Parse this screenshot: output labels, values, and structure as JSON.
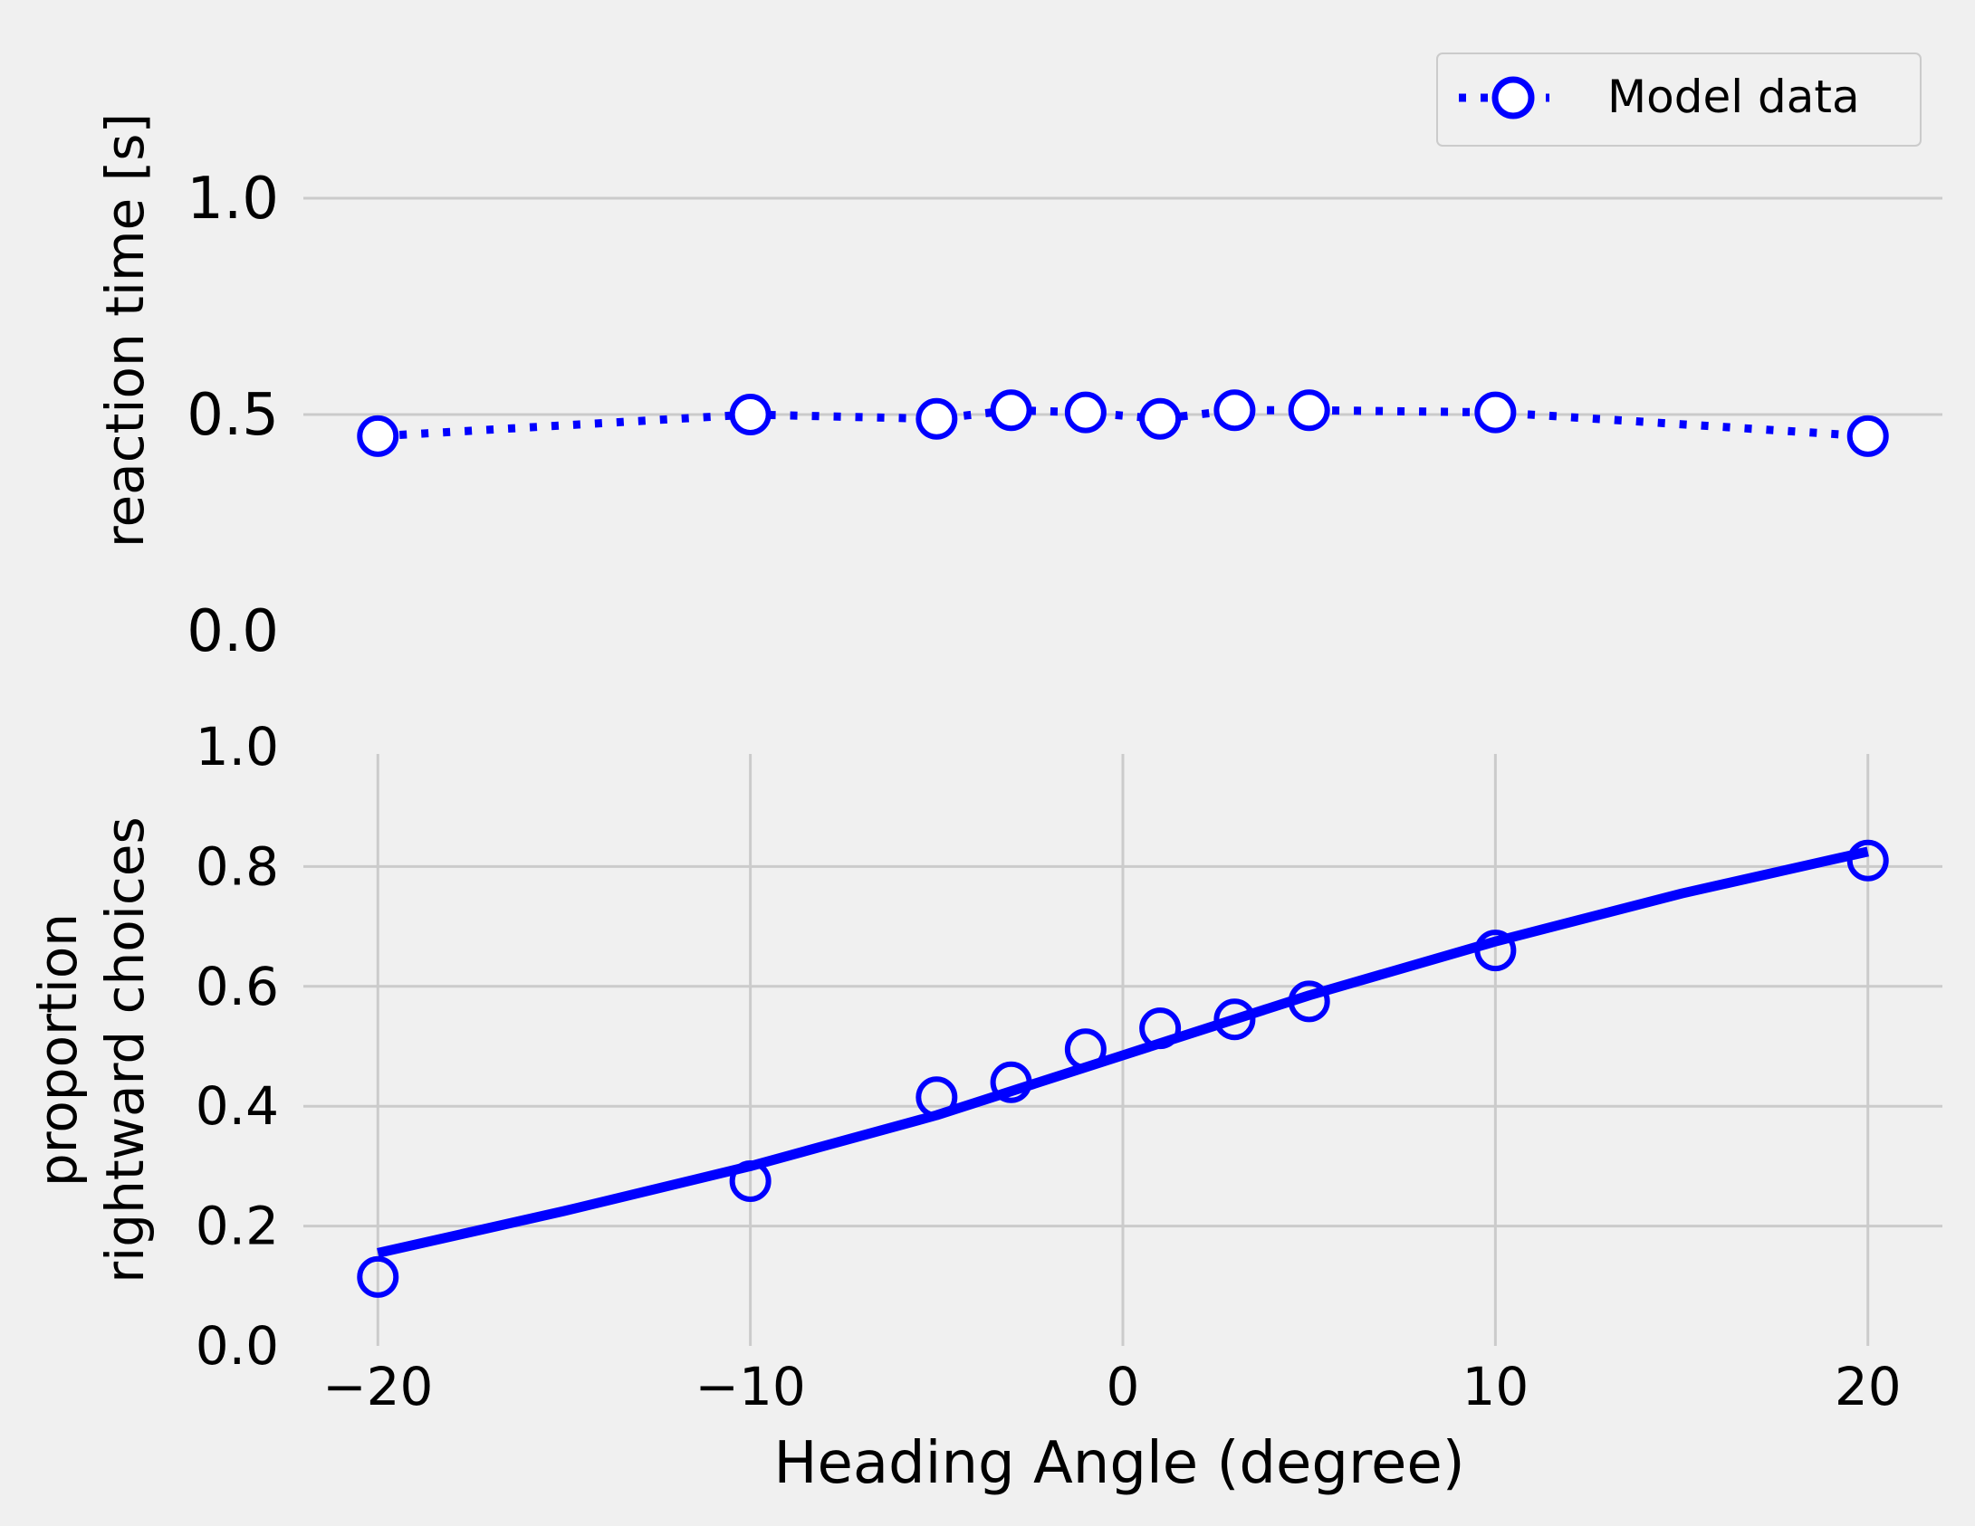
{
  "colors": {
    "background": "#f0f0f0",
    "series": "#0000ff",
    "grid": "#cbcbcb",
    "marker_fill": "#ffffff"
  },
  "chart_data": [
    {
      "type": "line",
      "ylabel": "reaction time [s]",
      "xlabel": "",
      "ylim": [
        0.0,
        1.3
      ],
      "yticks": [
        "0.0",
        "0.5",
        "1.0"
      ],
      "grid": "horizontal",
      "legend": {
        "placement": "top-right",
        "entries": [
          "Model data"
        ]
      },
      "series": [
        {
          "name": "Model data",
          "style": "dotted line with hollow circle markers",
          "x": [
            -20,
            -10,
            -5,
            -3,
            -1,
            1,
            3,
            5,
            10,
            20
          ],
          "y": [
            0.45,
            0.5,
            0.49,
            0.51,
            0.505,
            0.49,
            0.51,
            0.51,
            0.505,
            0.45
          ]
        }
      ]
    },
    {
      "type": "line",
      "ylabel_lines": [
        "proportion",
        "rightward choices"
      ],
      "xlabel": "Heading Angle (degree)",
      "xlim": [
        -22,
        22
      ],
      "ylim": [
        0.0,
        1.0
      ],
      "xticks": [
        "−20",
        "−10",
        "0",
        "10",
        "20"
      ],
      "yticks": [
        "0.0",
        "0.2",
        "0.4",
        "0.6",
        "0.8",
        "1.0"
      ],
      "grid": "both",
      "series": [
        {
          "style": "hollow circle markers",
          "x": [
            -20,
            -10,
            -5,
            -3,
            -1,
            1,
            3,
            5,
            10,
            20
          ],
          "y": [
            0.115,
            0.275,
            0.415,
            0.44,
            0.495,
            0.53,
            0.545,
            0.575,
            0.66,
            0.81
          ]
        },
        {
          "style": "solid fitted curve",
          "x": [
            -20,
            -15,
            -10,
            -5,
            0,
            5,
            10,
            15,
            20
          ],
          "y": [
            0.155,
            0.225,
            0.3,
            0.385,
            0.485,
            0.585,
            0.675,
            0.755,
            0.825
          ]
        }
      ]
    }
  ]
}
